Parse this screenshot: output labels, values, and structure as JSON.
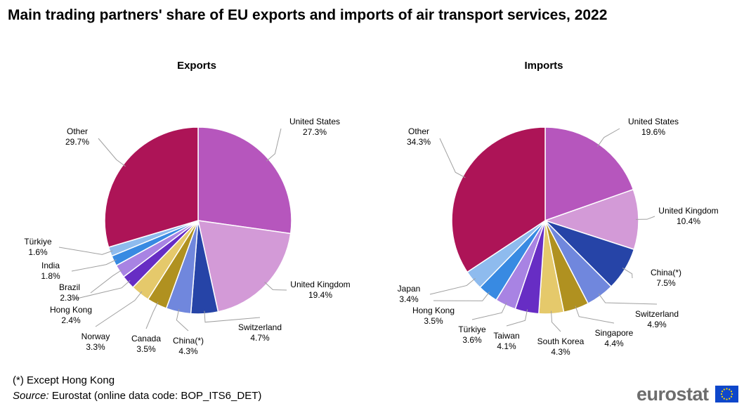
{
  "title": "Main trading partners' share of EU exports and imports of air transport services, 2022",
  "footnote": "(*) Except Hong Kong",
  "source": {
    "label": "Source:",
    "text": " Eurostat (online data code: BOP_ITS6_DET)"
  },
  "logo": {
    "text": "eurostat",
    "flag_color": "#0e47cb",
    "star_color": "#ffdd00"
  },
  "chart_data": [
    {
      "type": "pie",
      "title": "Exports",
      "unit": "%",
      "slices": [
        {
          "label": "United States",
          "value": 27.3,
          "display": "27.3%",
          "color": "#b656bd"
        },
        {
          "label": "United Kingdom",
          "value": 19.4,
          "display": "19.4%",
          "color": "#d39ad7"
        },
        {
          "label": "Switzerland",
          "value": 4.7,
          "display": "4.7%",
          "color": "#2644a7"
        },
        {
          "label": "China(*)",
          "value": 4.3,
          "display": "4.3%",
          "color": "#7087dd"
        },
        {
          "label": "Canada",
          "value": 3.5,
          "display": "3.5%",
          "color": "#b09120"
        },
        {
          "label": "Norway",
          "value": 3.3,
          "display": "3.3%",
          "color": "#e5c96b"
        },
        {
          "label": "Hong Kong",
          "value": 2.4,
          "display": "2.4%",
          "color": "#672dc4"
        },
        {
          "label": "Brazil",
          "value": 2.3,
          "display": "2.3%",
          "color": "#a883e3"
        },
        {
          "label": "India",
          "value": 1.8,
          "display": "1.8%",
          "color": "#388ae2"
        },
        {
          "label": "Türkiye",
          "value": 1.6,
          "display": "1.6%",
          "color": "#8ebbee"
        },
        {
          "label": "Other",
          "value": 29.7,
          "display": "29.7%",
          "color": "#ad1457"
        }
      ]
    },
    {
      "type": "pie",
      "title": "Imports",
      "unit": "%",
      "slices": [
        {
          "label": "United States",
          "value": 19.6,
          "display": "19.6%",
          "color": "#b656bd"
        },
        {
          "label": "United Kingdom",
          "value": 10.4,
          "display": "10.4%",
          "color": "#d39ad7"
        },
        {
          "label": "China(*)",
          "value": 7.5,
          "display": "7.5%",
          "color": "#2644a7"
        },
        {
          "label": "Switzerland",
          "value": 4.9,
          "display": "4.9%",
          "color": "#7087dd"
        },
        {
          "label": "Singapore",
          "value": 4.4,
          "display": "4.4%",
          "color": "#b09120"
        },
        {
          "label": "South Korea",
          "value": 4.3,
          "display": "4.3%",
          "color": "#e5c96b"
        },
        {
          "label": "Taiwan",
          "value": 4.1,
          "display": "4.1%",
          "color": "#672dc4"
        },
        {
          "label": "Türkiye",
          "value": 3.6,
          "display": "3.6%",
          "color": "#a883e3"
        },
        {
          "label": "Hong Kong",
          "value": 3.5,
          "display": "3.5%",
          "color": "#388ae2"
        },
        {
          "label": "Japan",
          "value": 3.4,
          "display": "3.4%",
          "color": "#8ebbee"
        },
        {
          "label": "Other",
          "value": 34.3,
          "display": "34.3%",
          "color": "#ad1457"
        }
      ]
    }
  ]
}
